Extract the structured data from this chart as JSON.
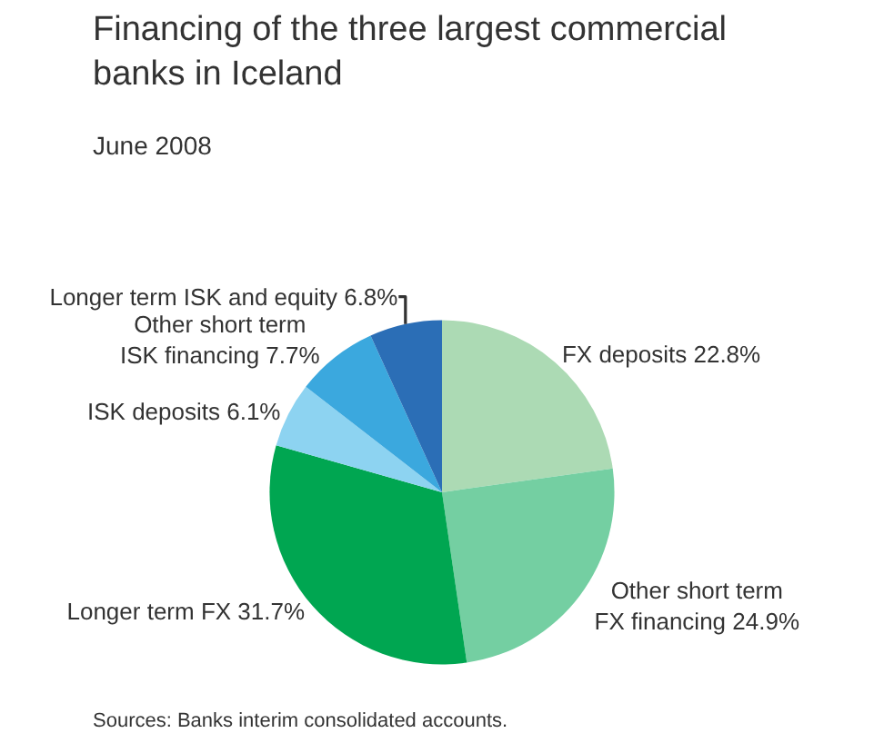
{
  "chart_data": {
    "type": "pie",
    "title": "Financing of the three largest commercial\nbanks in Iceland",
    "subtitle": "June 2008",
    "categories": [
      "FX deposits",
      "Other short term\nFX financing",
      "Longer term FX",
      "ISK deposits",
      "Other short term\nISK financing",
      "Longer term ISK and equity"
    ],
    "values": [
      22.8,
      24.9,
      31.7,
      6.1,
      7.7,
      6.8
    ],
    "value_labels": [
      "22.8%",
      "24.9%",
      "31.7%",
      "6.1%",
      "7.7%",
      "6.8%"
    ],
    "colors": [
      "#acdab4",
      "#74cfa2",
      "#00a651",
      "#8dd3f1",
      "#3ba8de",
      "#2b6eb6"
    ],
    "annotations": [
      "Sources: Banks interim consolidated accounts."
    ],
    "legend": false
  }
}
